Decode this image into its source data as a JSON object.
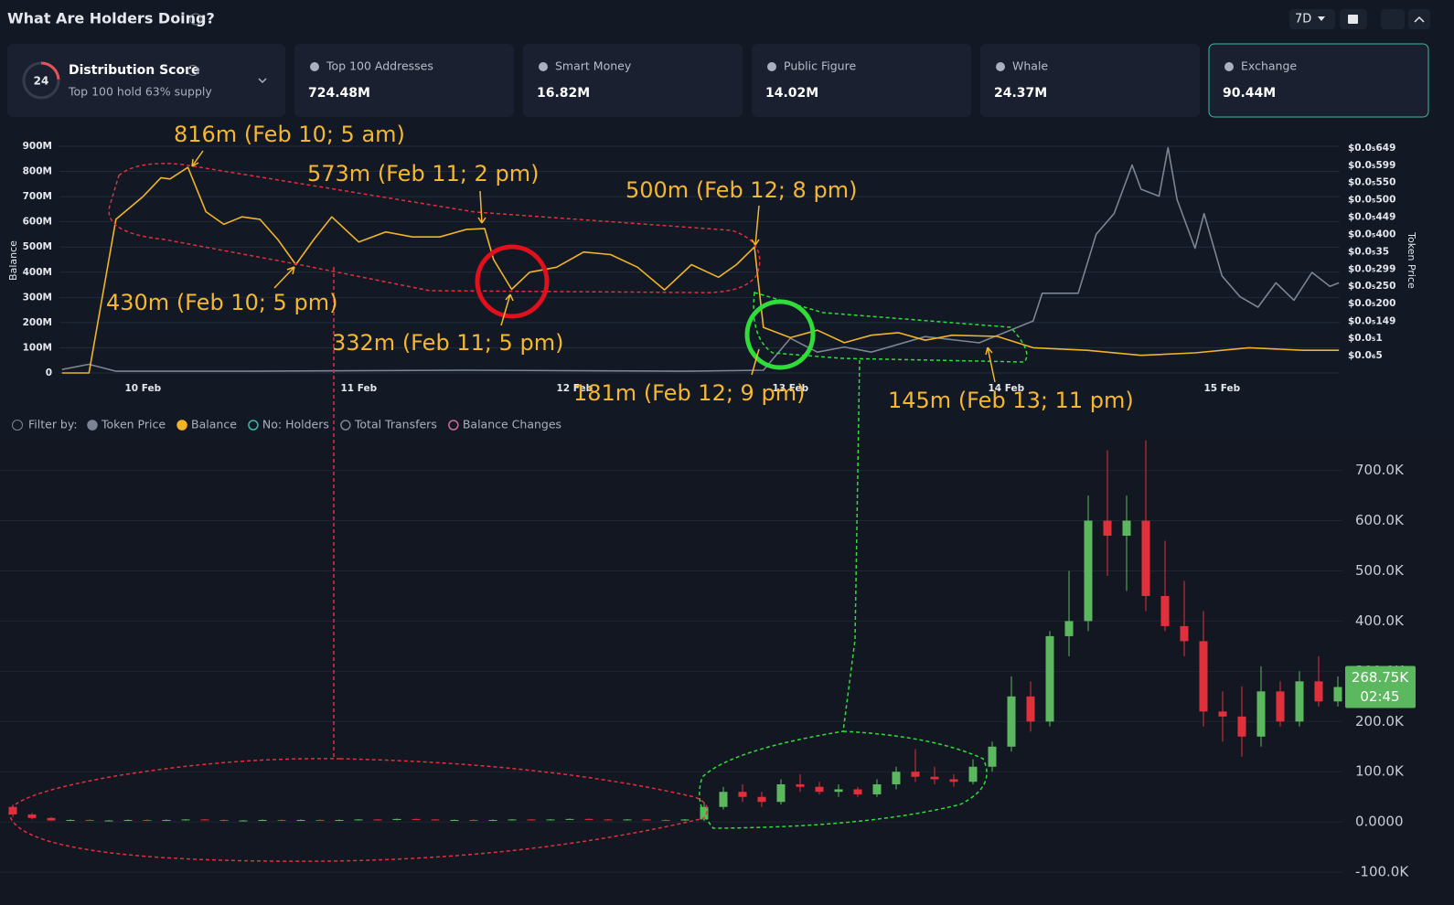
{
  "header": {
    "title": "What Are Holders Doing?",
    "period": "7D"
  },
  "distribution": {
    "score": 24,
    "label": "Distribution Score",
    "note": "Top 100 hold 63% supply"
  },
  "metrics": [
    {
      "label": "Top 100 Addresses",
      "value": "724.48M"
    },
    {
      "label": "Smart Money",
      "value": "16.82M"
    },
    {
      "label": "Public Figure",
      "value": "14.02M"
    },
    {
      "label": "Whale",
      "value": "24.37M"
    },
    {
      "label": "Exchange",
      "value": "90.44M"
    }
  ],
  "filter": {
    "label": "Filter by:",
    "options": [
      "Token Price",
      "Balance",
      "No: Holders",
      "Total Transfers",
      "Balance Changes"
    ]
  },
  "annotations": [
    "816m (Feb 10; 5 am)",
    "573m (Feb 11; 2 pm)",
    "500m (Feb 12; 8 pm)",
    "430m (Feb 10; 5 pm)",
    "332m (Feb 11; 5 pm)",
    "181m (Feb 12; 9 pm)",
    "145m (Feb 13; 11 pm)"
  ],
  "chart_data": [
    {
      "type": "line",
      "ylabel": "Balance",
      "y2label": "Token Price",
      "xlim": [
        "Feb 9 14:00",
        "Feb 15 14:00"
      ],
      "xticks": [
        {
          "value": "Feb 10 00:00",
          "label": "10 Feb"
        },
        {
          "value": "Feb 11 00:00",
          "label": "11 Feb"
        },
        {
          "value": "Feb 12 00:00",
          "label": "12 Feb"
        },
        {
          "value": "Feb 13 00:00",
          "label": "13 Feb"
        },
        {
          "value": "Feb 14 00:00",
          "label": "14 Feb"
        },
        {
          "value": "Feb 15 00:00",
          "label": "15 Feb"
        }
      ],
      "ylim": [
        0,
        900
      ],
      "yticks": [
        0,
        {
          "value": 100,
          "label": "100M"
        },
        {
          "value": 200,
          "label": "200M"
        },
        {
          "value": 300,
          "label": "300M"
        },
        {
          "value": 400,
          "label": "400M"
        },
        {
          "value": 500,
          "label": "500M"
        },
        {
          "value": 600,
          "label": "600M"
        },
        {
          "value": 700,
          "label": "700M"
        },
        {
          "value": 800,
          "label": "800M"
        },
        {
          "value": 900,
          "label": "900M"
        }
      ],
      "y2lim": [
        0,
        6.54e-06
      ],
      "y2ticks": [
        {
          "value": 5e-07,
          "label": "$0.0₆5"
        },
        {
          "value": 1e-06,
          "label": "$0.0₅1"
        },
        {
          "value": 1.49e-06,
          "label": "$0.0₅149"
        },
        {
          "value": 2e-06,
          "label": "$0.0₅200"
        },
        {
          "value": 2.5e-06,
          "label": "$0.0₅250"
        },
        {
          "value": 2.99e-06,
          "label": "$0.0₅299"
        },
        {
          "value": 3.5e-06,
          "label": "$0.0₅35"
        },
        {
          "value": 4e-06,
          "label": "$0.0₅400"
        },
        {
          "value": 4.49e-06,
          "label": "$0.0₅449"
        },
        {
          "value": 5e-06,
          "label": "$0.0₅500"
        },
        {
          "value": 5.5e-06,
          "label": "$0.0₅550"
        },
        {
          "value": 5.99e-06,
          "label": "$0.0₅599"
        },
        {
          "value": 6.49e-06,
          "label": "$0.0₅649"
        }
      ],
      "grid": true,
      "series": [
        {
          "name": "Token Price",
          "color": "#7d8594",
          "axis": "y2",
          "x": [
            "Feb 9 15:00",
            "Feb 9 18:00",
            "Feb 9 21:00",
            "Feb 10 12:00",
            "Feb 11 12:00",
            "Feb 12 12:00",
            "Feb 12 21:00",
            "Feb 13 00:00",
            "Feb 13 03:00",
            "Feb 13 06:00",
            "Feb 13 09:00",
            "Feb 13 15:00",
            "Feb 13 21:00",
            "Feb 14 03:00",
            "Feb 14 04:00",
            "Feb 14 08:00",
            "Feb 14 10:00",
            "Feb 14 12:00",
            "Feb 14 14:00",
            "Feb 14 15:00",
            "Feb 14 17:00",
            "Feb 14 18:00",
            "Feb 14 19:00",
            "Feb 14 21:00",
            "Feb 14 22:00",
            "Feb 15 00:00",
            "Feb 15 02:00",
            "Feb 15 04:00",
            "Feb 15 06:00",
            "Feb 15 08:00",
            "Feb 15 10:00",
            "Feb 15 12:00",
            "Feb 15 13:00"
          ],
          "values": [
            1e-07,
            2.5e-07,
            5e-08,
            5e-08,
            8e-08,
            5e-08,
            8e-08,
            1e-06,
            6e-07,
            7.5e-07,
            6e-07,
            1.05e-06,
            8.7e-07,
            1.5e-06,
            2.3e-06,
            2.3e-06,
            4e-06,
            4.6e-06,
            6e-06,
            5.3e-06,
            5.1e-06,
            6.5e-06,
            5e-06,
            3.6e-06,
            4.6e-06,
            2.8e-06,
            2.2e-06,
            1.9e-06,
            2.6e-06,
            2.1e-06,
            2.9e-06,
            2.5e-06,
            2.6e-06
          ]
        },
        {
          "name": "Balance",
          "color": "#f0b429",
          "x": [
            "Feb 9 15:00",
            "Feb 9 18:00",
            "Feb 9 21:00",
            "Feb 10 00:00",
            "Feb 10 02:00",
            "Feb 10 03:00",
            "Feb 10 05:00",
            "Feb 10 07:00",
            "Feb 10 09:00",
            "Feb 10 11:00",
            "Feb 10 13:00",
            "Feb 10 15:00",
            "Feb 10 17:00",
            "Feb 10 19:00",
            "Feb 10 21:00",
            "Feb 11 00:00",
            "Feb 11 03:00",
            "Feb 11 06:00",
            "Feb 11 09:00",
            "Feb 11 12:00",
            "Feb 11 14:00",
            "Feb 11 15:00",
            "Feb 11 17:00",
            "Feb 11 19:00",
            "Feb 11 22:00",
            "Feb 12 01:00",
            "Feb 12 04:00",
            "Feb 12 07:00",
            "Feb 12 10:00",
            "Feb 12 13:00",
            "Feb 12 16:00",
            "Feb 12 18:00",
            "Feb 12 20:00",
            "Feb 12 21:00",
            "Feb 13 00:00",
            "Feb 13 03:00",
            "Feb 13 06:00",
            "Feb 13 09:00",
            "Feb 13 12:00",
            "Feb 13 15:00",
            "Feb 13 18:00",
            "Feb 13 23:00",
            "Feb 14 03:00",
            "Feb 14 09:00",
            "Feb 14 15:00",
            "Feb 14 21:00",
            "Feb 15 03:00",
            "Feb 15 09:00",
            "Feb 15 13:00"
          ],
          "values": [
            0,
            0,
            610,
            700,
            775,
            770,
            816,
            640,
            590,
            620,
            610,
            530,
            430,
            530,
            620,
            520,
            560,
            540,
            540,
            570,
            573,
            450,
            332,
            400,
            420,
            480,
            470,
            420,
            330,
            430,
            380,
            430,
            500,
            181,
            140,
            170,
            120,
            150,
            160,
            130,
            150,
            145,
            100,
            90,
            70,
            80,
            100,
            90,
            90
          ]
        }
      ]
    },
    {
      "type": "candlestick",
      "up_color": "#5cb85f",
      "down_color": "#e0303c",
      "ylim": [
        -138000,
        763000
      ],
      "yticks": [
        {
          "value": -100000,
          "label": "-100.0K"
        },
        {
          "value": 0,
          "label": "0.0000"
        },
        {
          "value": 100000,
          "label": "100.0K"
        },
        {
          "value": 200000,
          "label": "200.0K"
        },
        {
          "value": 300000,
          "label": "300.0K"
        },
        {
          "value": 400000,
          "label": "400.0K"
        },
        {
          "value": 500000,
          "label": "500.0K"
        },
        {
          "value": 600000,
          "label": "600.0K"
        },
        {
          "value": 700000,
          "label": "700.0K"
        }
      ],
      "grid": true,
      "last_price": {
        "value": 268750,
        "label": "268.75K"
      },
      "countdown": "02:45",
      "open": [
        30000,
        15000,
        8000,
        3000,
        4000,
        3000,
        3000,
        4000,
        3000,
        4000,
        5000,
        4000,
        3000,
        3000,
        4000,
        3000,
        4000,
        3000,
        4000,
        5000,
        4000,
        6000,
        5000,
        4000,
        4000,
        3000,
        4000,
        5000,
        4000,
        5000,
        6000,
        5000,
        4000,
        5000,
        4000,
        3000,
        5000,
        30000,
        60000,
        50000,
        40000,
        75000,
        70000,
        60000,
        65000,
        55000,
        75000,
        100000,
        90000,
        85000,
        80000,
        110000,
        150000,
        250000,
        200000,
        370000,
        400000,
        600000,
        570000,
        600000,
        450000,
        390000,
        360000,
        220000,
        210000,
        170000,
        260000,
        200000,
        280000,
        240000
      ],
      "high": [
        35000,
        18000,
        10000,
        5000,
        5000,
        4000,
        5000,
        5000,
        5000,
        6000,
        6000,
        5000,
        4000,
        5000,
        5000,
        5000,
        5000,
        5000,
        6000,
        6000,
        7000,
        7000,
        6000,
        5000,
        5000,
        5000,
        6000,
        6000,
        6000,
        7000,
        7000,
        6000,
        6000,
        6000,
        5000,
        6000,
        40000,
        70000,
        75000,
        60000,
        85000,
        95000,
        80000,
        75000,
        70000,
        85000,
        110000,
        145000,
        110000,
        95000,
        125000,
        160000,
        290000,
        280000,
        380000,
        500000,
        650000,
        740000,
        650000,
        760000,
        560000,
        480000,
        420000,
        260000,
        270000,
        310000,
        280000,
        300000,
        330000,
        290000
      ],
      "low": [
        10000,
        5000,
        2000,
        2000,
        2000,
        2000,
        2000,
        2000,
        2000,
        3000,
        3000,
        2000,
        2000,
        2000,
        2000,
        2000,
        2000,
        2000,
        3000,
        3000,
        3000,
        4000,
        3000,
        3000,
        2000,
        2000,
        3000,
        3000,
        3000,
        4000,
        4000,
        3000,
        3000,
        3000,
        2000,
        2000,
        2000,
        25000,
        40000,
        30000,
        35000,
        60000,
        55000,
        50000,
        50000,
        50000,
        65000,
        80000,
        75000,
        70000,
        75000,
        100000,
        140000,
        180000,
        190000,
        330000,
        380000,
        490000,
        460000,
        420000,
        380000,
        330000,
        190000,
        160000,
        130000,
        150000,
        190000,
        190000,
        230000,
        230000
      ],
      "close": [
        15000,
        8000,
        3000,
        4000,
        3000,
        3000,
        4000,
        3000,
        4000,
        5000,
        4000,
        3000,
        3000,
        4000,
        3000,
        4000,
        3000,
        4000,
        5000,
        4000,
        6000,
        5000,
        4000,
        4000,
        3000,
        4000,
        5000,
        4000,
        5000,
        6000,
        5000,
        4000,
        5000,
        4000,
        3000,
        5000,
        30000,
        60000,
        50000,
        40000,
        75000,
        70000,
        60000,
        65000,
        55000,
        75000,
        100000,
        90000,
        85000,
        80000,
        110000,
        150000,
        250000,
        200000,
        370000,
        400000,
        600000,
        570000,
        600000,
        450000,
        390000,
        360000,
        220000,
        210000,
        170000,
        260000,
        200000,
        280000,
        240000,
        268750
      ]
    }
  ]
}
